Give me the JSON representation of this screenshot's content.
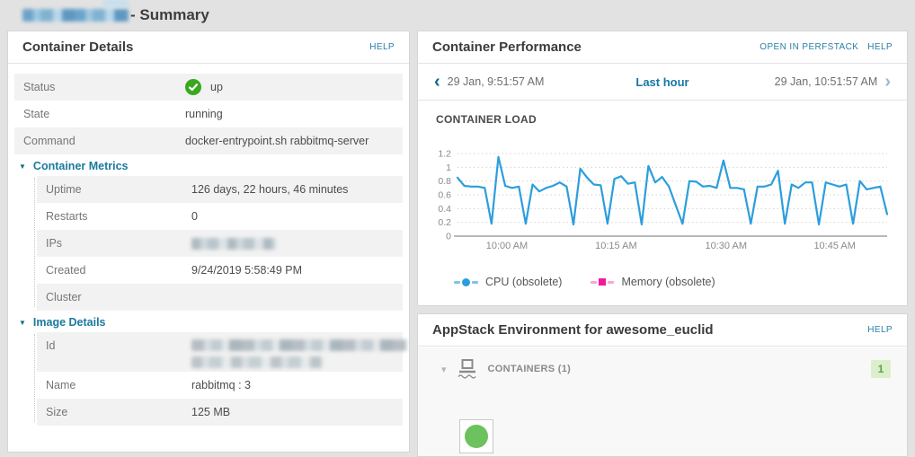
{
  "colors": {
    "accent_blue": "#2b9edd",
    "memory_pink": "#f5189e",
    "status_up_green": "#3aa81f",
    "appstack_node_green": "#6cc25c",
    "link_blue": "#2a7fa8"
  },
  "page": {
    "title": "- Summary"
  },
  "container_details": {
    "title": "Container Details",
    "help_label": "HELP",
    "rows": [
      {
        "label": "Status",
        "value": "up"
      },
      {
        "label": "State",
        "value": "running"
      },
      {
        "label": "Command",
        "value": "docker-entrypoint.sh rabbitmq-server"
      }
    ],
    "sections": [
      {
        "title": "Container Metrics",
        "rows": [
          {
            "label": "Uptime",
            "value": "126 days, 22 hours, 46 minutes"
          },
          {
            "label": "Restarts",
            "value": "0"
          },
          {
            "label": "IPs",
            "value": ""
          },
          {
            "label": "Created",
            "value": "9/24/2019 5:58:49 PM"
          },
          {
            "label": "Cluster",
            "value": ""
          }
        ]
      },
      {
        "title": "Image Details",
        "rows": [
          {
            "label": "Id",
            "value": ""
          },
          {
            "label": "Name",
            "value": "rabbitmq : 3"
          },
          {
            "label": "Size",
            "value": "125 MB"
          }
        ]
      }
    ]
  },
  "container_performance": {
    "title": "Container Performance",
    "open_in_perfstack_label": "OPEN IN PERFSTACK",
    "help_label": "HELP",
    "time_range": {
      "start": "29 Jan, 9:51:57 AM",
      "label": "Last hour",
      "end": "29 Jan, 10:51:57 AM"
    },
    "legend": [
      {
        "name": "CPU (obsolete)",
        "color": "#2b9edd",
        "marker": "circle"
      },
      {
        "name": "Memory (obsolete)",
        "color": "#f5189e",
        "marker": "square"
      }
    ]
  },
  "chart_data": {
    "type": "line",
    "title": "CONTAINER LOAD",
    "xlabel": "",
    "ylabel": "",
    "ylim": [
      0,
      1.2
    ],
    "yticks": [
      "0",
      "0.2",
      "0.4",
      "0.6",
      "0.8",
      "1",
      "1.2"
    ],
    "ytick_values": [
      0,
      0.2,
      0.4,
      0.6,
      0.8,
      1,
      1.2
    ],
    "x_ticks": [
      {
        "label": "10:00 AM",
        "pos": 0.115
      },
      {
        "label": "10:15 AM",
        "pos": 0.369
      },
      {
        "label": "10:30 AM",
        "pos": 0.625
      },
      {
        "label": "10:45 AM",
        "pos": 0.878
      }
    ],
    "grid": "dotted-horizontal",
    "legend_position": "bottom",
    "series": [
      {
        "name": "CPU (obsolete)",
        "color": "#2b9edd",
        "values": [
          0.85,
          0.73,
          0.72,
          0.72,
          0.7,
          0.18,
          1.15,
          0.73,
          0.7,
          0.72,
          0.18,
          0.75,
          0.65,
          0.7,
          0.73,
          0.78,
          0.72,
          0.17,
          0.98,
          0.85,
          0.75,
          0.74,
          0.18,
          0.83,
          0.87,
          0.76,
          0.78,
          0.17,
          1.02,
          0.78,
          0.86,
          0.72,
          0.45,
          0.18,
          0.8,
          0.79,
          0.72,
          0.73,
          0.7,
          1.1,
          0.7,
          0.7,
          0.68,
          0.18,
          0.72,
          0.72,
          0.75,
          0.95,
          0.18,
          0.75,
          0.7,
          0.78,
          0.78,
          0.17,
          0.78,
          0.75,
          0.72,
          0.75,
          0.18,
          0.8,
          0.68,
          0.7,
          0.72,
          0.32
        ]
      },
      {
        "name": "Memory (obsolete)",
        "color": "#f5189e",
        "values": []
      }
    ]
  },
  "appstack": {
    "title": "AppStack Environment for awesome_euclid",
    "help_label": "HELP",
    "group_label": "CONTAINERS (1)",
    "count_badge": "1"
  }
}
